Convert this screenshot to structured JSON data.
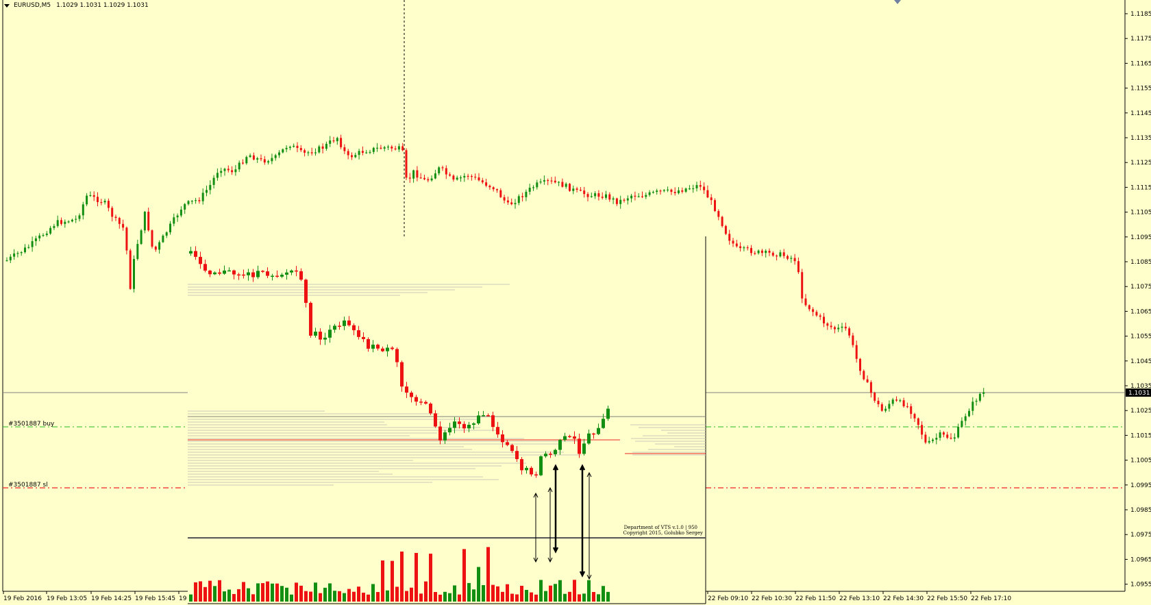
{
  "window": {
    "symbol": "EURUSD,M5",
    "ohlc": "1.1029 1.1031 1.1029 1.1031"
  },
  "price_axis": {
    "ticks": [
      "1.1185",
      "1.1175",
      "1.1165",
      "1.1155",
      "1.1145",
      "1.1135",
      "1.1125",
      "1.1115",
      "1.1105",
      "1.1095",
      "1.1085",
      "1.1075",
      "1.1065",
      "1.1055",
      "1.1045",
      "1.1035",
      "1.1025",
      "1.1015",
      "1.1005",
      "1.0995",
      "1.0985",
      "1.0975",
      "1.0965",
      "1.0955"
    ],
    "current_price": "1.1031"
  },
  "time_axis": {
    "labels": [
      "19 Feb 2016",
      "19 Feb 13:05",
      "19 Feb 14:25",
      "19 Feb 15:45",
      "19",
      "22 Feb 09:10",
      "22 Feb 10:30",
      "22 Feb 11:50",
      "22 Feb 13:10",
      "22 Feb 14:30",
      "22 Feb 15:50",
      "22 Feb 17:10"
    ]
  },
  "orders": {
    "buy_label": "#3501887 buy",
    "sl_label": "#3501887 sl"
  },
  "inset": {
    "credit_line1": "Department of VTS  v.1.0 | 950",
    "credit_line2": "Copyright 2015, Golubko Sergey"
  },
  "colors": {
    "background": "#FFFFCC",
    "bull": "#128F12",
    "bear": "#EE1111",
    "grid_line": "#808080",
    "buy_line": "#22BB22",
    "sl_line": "#EE2222"
  }
}
